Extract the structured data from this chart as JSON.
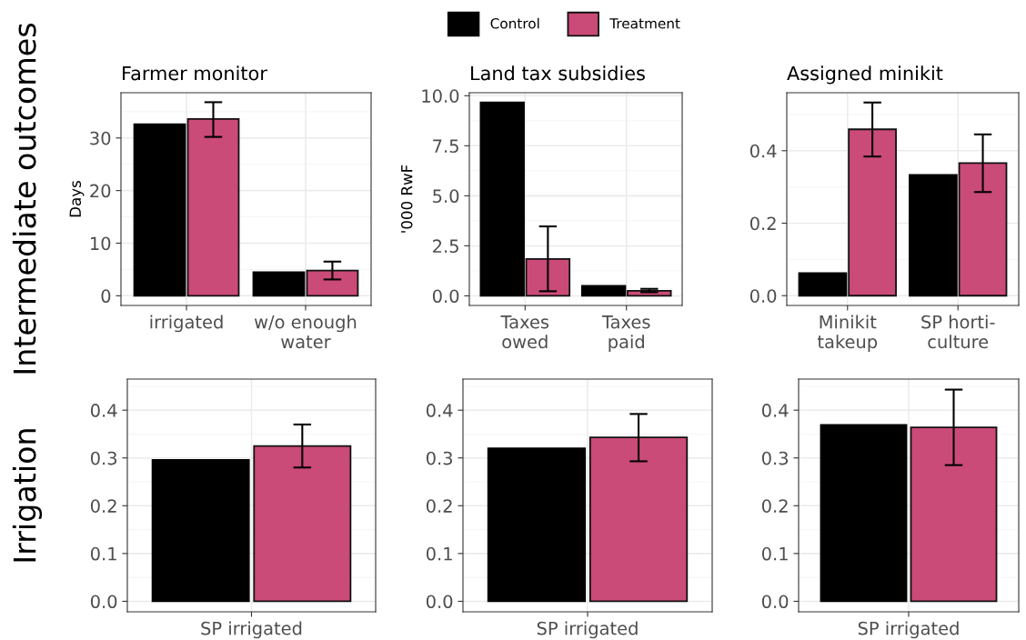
{
  "chart_data": [
    {
      "type": "bar",
      "title": "Farmer monitor",
      "ylabel": "Days",
      "annotations": [
        "Intermediate outcomes"
      ],
      "legend": "top",
      "grid": true,
      "categories": [
        "irrigated",
        "w/o enough\nwater"
      ],
      "ylim": [
        -1.84,
        38.6
      ],
      "yticks": [
        0,
        10,
        20,
        30
      ],
      "series": [
        {
          "name": "Control",
          "color": "#000000",
          "values": [
            32.6,
            4.5
          ]
        },
        {
          "name": "Treatment",
          "color": "#ca4a78",
          "values": [
            33.6,
            4.8
          ],
          "errors": [
            [
              30.2,
              36.8
            ],
            [
              3.1,
              6.5
            ]
          ]
        }
      ]
    },
    {
      "type": "bar",
      "title": "Land tax subsidies",
      "ylabel": "'000 RwF",
      "grid": true,
      "categories": [
        "Taxes\nowed",
        "Taxes\npaid"
      ],
      "ylim": [
        -0.48,
        10.15
      ],
      "yticks": [
        {
          "value": 0,
          "label": "0.0"
        },
        2.5,
        {
          "value": 5,
          "label": "5.0"
        },
        7.5,
        {
          "value": 10,
          "label": "10.0"
        }
      ],
      "series": [
        {
          "name": "Control",
          "color": "#000000",
          "values": [
            9.67,
            0.5
          ]
        },
        {
          "name": "Treatment",
          "color": "#ca4a78",
          "values": [
            1.84,
            0.25
          ],
          "errors": [
            [
              0.23,
              3.47
            ],
            [
              0.18,
              0.35
            ]
          ]
        }
      ]
    },
    {
      "type": "bar",
      "title": "Assigned minikit",
      "grid": true,
      "categories": [
        "Minikit\ntakeup",
        "SP horti-\nculture"
      ],
      "ylim": [
        -0.027,
        0.56
      ],
      "yticks": [
        {
          "value": 0,
          "label": "0.0"
        },
        0.2,
        0.4
      ],
      "series": [
        {
          "name": "Control",
          "color": "#000000",
          "values": [
            0.062,
            0.333
          ]
        },
        {
          "name": "Treatment",
          "color": "#ca4a78",
          "values": [
            0.459,
            0.366
          ],
          "errors": [
            [
              0.384,
              0.533
            ],
            [
              0.286,
              0.445
            ]
          ]
        }
      ]
    },
    {
      "type": "bar",
      "annotations": [
        "Irrigation"
      ],
      "grid": true,
      "categories": [
        "SP irrigated"
      ],
      "ylim": [
        -0.022,
        0.465
      ],
      "yticks": [
        {
          "value": 0,
          "label": "0.0"
        },
        0.1,
        0.2,
        0.3,
        0.4
      ],
      "series": [
        {
          "name": "Control",
          "color": "#000000",
          "values": [
            0.296
          ]
        },
        {
          "name": "Treatment",
          "color": "#ca4a78",
          "values": [
            0.325
          ],
          "errors": [
            [
              0.28,
              0.37
            ]
          ]
        }
      ]
    },
    {
      "type": "bar",
      "grid": true,
      "categories": [
        "SP irrigated"
      ],
      "ylim": [
        -0.022,
        0.465
      ],
      "yticks": [
        {
          "value": 0,
          "label": "0.0"
        },
        0.1,
        0.2,
        0.3,
        0.4
      ],
      "series": [
        {
          "name": "Control",
          "color": "#000000",
          "values": [
            0.32
          ]
        },
        {
          "name": "Treatment",
          "color": "#ca4a78",
          "values": [
            0.343
          ],
          "errors": [
            [
              0.293,
              0.392
            ]
          ]
        }
      ]
    },
    {
      "type": "bar",
      "grid": true,
      "categories": [
        "SP irrigated"
      ],
      "ylim": [
        -0.022,
        0.465
      ],
      "yticks": [
        {
          "value": 0,
          "label": "0.0"
        },
        0.1,
        0.2,
        0.3,
        0.4
      ],
      "series": [
        {
          "name": "Control",
          "color": "#000000",
          "values": [
            0.369
          ]
        },
        {
          "name": "Treatment",
          "color": "#ca4a78",
          "values": [
            0.364
          ],
          "errors": [
            [
              0.285,
              0.443
            ]
          ]
        }
      ]
    }
  ]
}
